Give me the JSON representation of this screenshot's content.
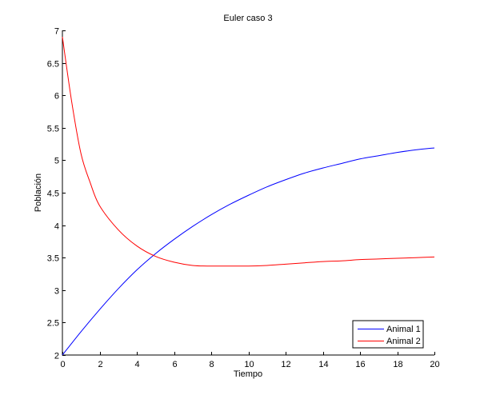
{
  "chart_data": {
    "type": "line",
    "title": "Euler caso 3",
    "xlabel": "Tiempo",
    "ylabel": "Población",
    "xlim": [
      0,
      20
    ],
    "ylim": [
      2,
      7
    ],
    "xticks": [
      0,
      2,
      4,
      6,
      8,
      10,
      12,
      14,
      16,
      18,
      20
    ],
    "xtick_labels": [
      "0",
      "2",
      "4",
      "6",
      "8",
      "10",
      "12",
      "14",
      "16",
      "18",
      "20"
    ],
    "yticks": [
      2,
      2.5,
      3,
      3.5,
      4,
      4.5,
      5,
      5.5,
      6,
      6.5,
      7
    ],
    "ytick_labels": [
      "2",
      "2.5",
      "3",
      "3.5",
      "4",
      "4.5",
      "5",
      "5.5",
      "6",
      "6.5",
      "7"
    ],
    "grid": false,
    "legend_position": "lower right",
    "series": [
      {
        "name": "Animal 1",
        "color": "#0000ff",
        "x": [
          0,
          1,
          2,
          3,
          4,
          5,
          6,
          7,
          8,
          9,
          10,
          11,
          12,
          13,
          14,
          15,
          16,
          17,
          18,
          19,
          20
        ],
        "values": [
          2.0,
          2.36,
          2.7,
          3.02,
          3.31,
          3.56,
          3.78,
          3.98,
          4.16,
          4.32,
          4.46,
          4.59,
          4.7,
          4.8,
          4.88,
          4.95,
          5.02,
          5.07,
          5.12,
          5.16,
          5.19
        ]
      },
      {
        "name": "Animal 2",
        "color": "#ff0000",
        "x": [
          0,
          0.5,
          1,
          1.5,
          2,
          3,
          4,
          5,
          6,
          7,
          8,
          9,
          10,
          11,
          12,
          13,
          14,
          15,
          16,
          17,
          18,
          19,
          20
        ],
        "values": [
          6.9,
          5.9,
          5.1,
          4.65,
          4.3,
          3.93,
          3.68,
          3.52,
          3.43,
          3.38,
          3.37,
          3.37,
          3.37,
          3.38,
          3.4,
          3.42,
          3.44,
          3.45,
          3.47,
          3.48,
          3.49,
          3.5,
          3.51
        ]
      }
    ]
  }
}
